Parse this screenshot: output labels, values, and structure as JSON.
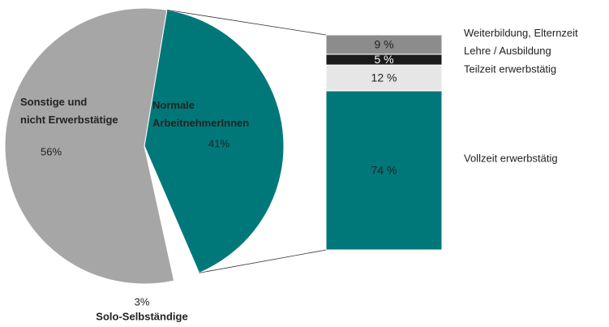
{
  "chart_data": [
    {
      "type": "pie",
      "categories": [
        "Normale\nArbeitnehmerInnen",
        "Solo-Selbständige",
        "Sonstige und\nnicht Erwerbstätige"
      ],
      "values": [
        41,
        3,
        56
      ],
      "value_labels": [
        "41%",
        "3%",
        "56%"
      ],
      "colors": [
        "#00787a",
        "#ffffff",
        "#a6a6a6"
      ]
    },
    {
      "type": "bar",
      "stacked": true,
      "series": [
        {
          "name": "Vollzeit erwerbstätig",
          "color": "#00787a",
          "values": [
            74
          ],
          "value_labels": [
            "74 %"
          ]
        },
        {
          "name": "Teilzeit erwerbstätig",
          "color": "#e6e6e6",
          "values": [
            12
          ],
          "value_labels": [
            "12 %"
          ]
        },
        {
          "name": "Lehre / Ausbildung",
          "color": "#1a1a1a",
          "values": [
            5
          ],
          "value_labels": [
            "5 %"
          ]
        },
        {
          "name": "Weiterbildung, Elternzeit",
          "color": "#8c8c8c",
          "values": [
            9
          ],
          "value_labels": [
            "9 %"
          ]
        }
      ]
    }
  ]
}
